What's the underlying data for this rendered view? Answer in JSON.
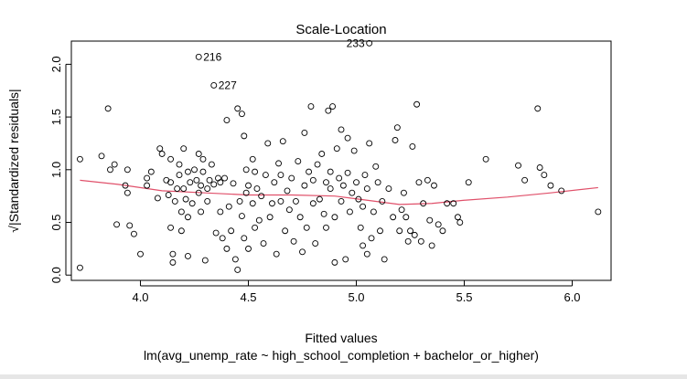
{
  "chart_data": {
    "type": "scatter",
    "title": "Scale-Location",
    "xlabel": "Fitted values",
    "ylabel": "√|Standardized residuals|",
    "subtitle": "lm(avg_unemp_rate ~ high_school_completion + bachelor_or_higher)",
    "xlim": [
      3.68,
      6.18
    ],
    "ylim": [
      -0.05,
      2.22
    ],
    "x_ticks": [
      "4.0",
      "4.5",
      "5.0",
      "5.5",
      "6.0"
    ],
    "y_ticks": [
      "0.0",
      "0.5",
      "1.0",
      "1.5",
      "2.0"
    ],
    "grid": false,
    "colors": {
      "points": "#000000",
      "smooth_line": "#e0506a",
      "frame": "#000000"
    },
    "smooth_line": {
      "x": [
        3.72,
        3.9,
        4.1,
        4.3,
        4.5,
        4.7,
        4.9,
        5.05,
        5.2,
        5.35,
        5.5,
        5.7,
        5.9,
        6.12
      ],
      "y": [
        0.9,
        0.86,
        0.8,
        0.78,
        0.76,
        0.76,
        0.75,
        0.71,
        0.67,
        0.68,
        0.71,
        0.74,
        0.78,
        0.83
      ]
    },
    "labeled_points": [
      {
        "label": "233",
        "x": 5.06,
        "y": 2.2
      },
      {
        "label": "216",
        "x": 4.27,
        "y": 2.07
      },
      {
        "label": "227",
        "x": 4.34,
        "y": 1.8
      }
    ],
    "points": [
      [
        3.72,
        1.1
      ],
      [
        3.72,
        0.07
      ],
      [
        3.82,
        1.13
      ],
      [
        3.85,
        1.58
      ],
      [
        3.86,
        1.0
      ],
      [
        3.88,
        1.05
      ],
      [
        3.89,
        0.48
      ],
      [
        3.93,
        0.85
      ],
      [
        3.94,
        1.0
      ],
      [
        3.94,
        0.78
      ],
      [
        3.95,
        0.47
      ],
      [
        3.97,
        0.39
      ],
      [
        4.0,
        0.2
      ],
      [
        4.03,
        0.85
      ],
      [
        4.03,
        0.92
      ],
      [
        4.05,
        0.98
      ],
      [
        4.08,
        0.73
      ],
      [
        4.09,
        1.2
      ],
      [
        4.1,
        1.15
      ],
      [
        4.12,
        0.9
      ],
      [
        4.13,
        0.76
      ],
      [
        4.14,
        0.88
      ],
      [
        4.14,
        1.1
      ],
      [
        4.14,
        0.45
      ],
      [
        4.15,
        0.2
      ],
      [
        4.15,
        0.12
      ],
      [
        4.16,
        0.7
      ],
      [
        4.17,
        0.82
      ],
      [
        4.18,
        1.05
      ],
      [
        4.18,
        0.95
      ],
      [
        4.19,
        0.6
      ],
      [
        4.19,
        0.42
      ],
      [
        4.2,
        1.2
      ],
      [
        4.2,
        0.82
      ],
      [
        4.21,
        0.72
      ],
      [
        4.22,
        0.98
      ],
      [
        4.22,
        0.55
      ],
      [
        4.22,
        0.18
      ],
      [
        4.23,
        0.88
      ],
      [
        4.24,
        0.68
      ],
      [
        4.25,
        1.0
      ],
      [
        4.26,
        0.9
      ],
      [
        4.27,
        1.15
      ],
      [
        4.27,
        0.78
      ],
      [
        4.28,
        0.85
      ],
      [
        4.28,
        0.6
      ],
      [
        4.29,
        1.1
      ],
      [
        4.29,
        0.98
      ],
      [
        4.3,
        0.14
      ],
      [
        4.31,
        0.82
      ],
      [
        4.31,
        0.7
      ],
      [
        4.32,
        0.9
      ],
      [
        4.33,
        1.05
      ],
      [
        4.34,
        0.86
      ],
      [
        4.35,
        0.4
      ],
      [
        4.36,
        0.92
      ],
      [
        4.37,
        0.6
      ],
      [
        4.37,
        0.88
      ],
      [
        4.38,
        0.35
      ],
      [
        4.39,
        0.92
      ],
      [
        4.4,
        0.25
      ],
      [
        4.4,
        1.47
      ],
      [
        4.41,
        0.65
      ],
      [
        4.42,
        0.42
      ],
      [
        4.43,
        0.87
      ],
      [
        4.44,
        0.15
      ],
      [
        4.45,
        1.58
      ],
      [
        4.45,
        0.05
      ],
      [
        4.46,
        0.7
      ],
      [
        4.47,
        1.53
      ],
      [
        4.47,
        0.56
      ],
      [
        4.48,
        1.32
      ],
      [
        4.48,
        0.35
      ],
      [
        4.49,
        1.0
      ],
      [
        4.49,
        0.78
      ],
      [
        4.5,
        0.85
      ],
      [
        4.5,
        0.25
      ],
      [
        4.52,
        1.1
      ],
      [
        4.52,
        0.68
      ],
      [
        4.53,
        0.98
      ],
      [
        4.53,
        0.45
      ],
      [
        4.54,
        0.82
      ],
      [
        4.55,
        0.52
      ],
      [
        4.56,
        0.75
      ],
      [
        4.57,
        0.3
      ],
      [
        4.58,
        0.95
      ],
      [
        4.59,
        1.25
      ],
      [
        4.6,
        0.55
      ],
      [
        4.61,
        0.68
      ],
      [
        4.62,
        0.88
      ],
      [
        4.63,
        0.2
      ],
      [
        4.64,
        1.06
      ],
      [
        4.65,
        0.95
      ],
      [
        4.65,
        0.7
      ],
      [
        4.66,
        1.27
      ],
      [
        4.67,
        0.42
      ],
      [
        4.68,
        0.8
      ],
      [
        4.69,
        0.62
      ],
      [
        4.7,
        0.92
      ],
      [
        4.71,
        0.32
      ],
      [
        4.72,
        0.7
      ],
      [
        4.73,
        1.08
      ],
      [
        4.74,
        0.55
      ],
      [
        4.75,
        0.22
      ],
      [
        4.76,
        1.35
      ],
      [
        4.76,
        0.85
      ],
      [
        4.77,
        0.45
      ],
      [
        4.78,
        0.98
      ],
      [
        4.79,
        1.6
      ],
      [
        4.8,
        0.68
      ],
      [
        4.8,
        0.9
      ],
      [
        4.81,
        0.3
      ],
      [
        4.82,
        1.05
      ],
      [
        4.83,
        0.72
      ],
      [
        4.84,
        1.15
      ],
      [
        4.85,
        0.58
      ],
      [
        4.86,
        0.88
      ],
      [
        4.86,
        0.45
      ],
      [
        4.87,
        1.56
      ],
      [
        4.88,
        0.98
      ],
      [
        4.88,
        0.82
      ],
      [
        4.89,
        1.6
      ],
      [
        4.9,
        0.55
      ],
      [
        4.9,
        0.12
      ],
      [
        4.91,
        1.2
      ],
      [
        4.92,
        0.92
      ],
      [
        4.93,
        0.7
      ],
      [
        4.93,
        1.38
      ],
      [
        4.94,
        0.85
      ],
      [
        4.95,
        0.15
      ],
      [
        4.96,
        0.97
      ],
      [
        4.96,
        1.3
      ],
      [
        4.97,
        0.6
      ],
      [
        4.98,
        0.78
      ],
      [
        4.99,
        1.18
      ],
      [
        5.0,
        0.88
      ],
      [
        5.01,
        0.72
      ],
      [
        5.02,
        0.45
      ],
      [
        5.03,
        0.65
      ],
      [
        5.03,
        0.28
      ],
      [
        5.04,
        0.95
      ],
      [
        5.05,
        0.2
      ],
      [
        5.05,
        0.82
      ],
      [
        5.06,
        1.25
      ],
      [
        5.07,
        0.35
      ],
      [
        5.08,
        0.6
      ],
      [
        5.09,
        1.03
      ],
      [
        5.1,
        0.88
      ],
      [
        5.11,
        0.42
      ],
      [
        5.12,
        0.7
      ],
      [
        5.13,
        0.15
      ],
      [
        5.15,
        0.82
      ],
      [
        5.17,
        0.55
      ],
      [
        5.18,
        1.28
      ],
      [
        5.19,
        1.4
      ],
      [
        5.2,
        0.42
      ],
      [
        5.21,
        0.62
      ],
      [
        5.22,
        0.78
      ],
      [
        5.23,
        0.55
      ],
      [
        5.24,
        0.32
      ],
      [
        5.25,
        0.42
      ],
      [
        5.26,
        1.22
      ],
      [
        5.27,
        0.38
      ],
      [
        5.28,
        1.62
      ],
      [
        5.29,
        0.88
      ],
      [
        5.3,
        0.32
      ],
      [
        5.31,
        0.68
      ],
      [
        5.33,
        0.9
      ],
      [
        5.34,
        0.52
      ],
      [
        5.35,
        0.28
      ],
      [
        5.36,
        0.85
      ],
      [
        5.38,
        0.48
      ],
      [
        5.4,
        0.42
      ],
      [
        5.42,
        0.68
      ],
      [
        5.45,
        0.68
      ],
      [
        5.47,
        0.55
      ],
      [
        5.48,
        0.5
      ],
      [
        5.52,
        0.88
      ],
      [
        5.6,
        1.1
      ],
      [
        5.75,
        1.04
      ],
      [
        5.78,
        0.9
      ],
      [
        5.84,
        1.58
      ],
      [
        5.85,
        1.02
      ],
      [
        5.87,
        0.95
      ],
      [
        5.9,
        0.85
      ],
      [
        5.95,
        0.8
      ],
      [
        6.12,
        0.6
      ]
    ]
  }
}
